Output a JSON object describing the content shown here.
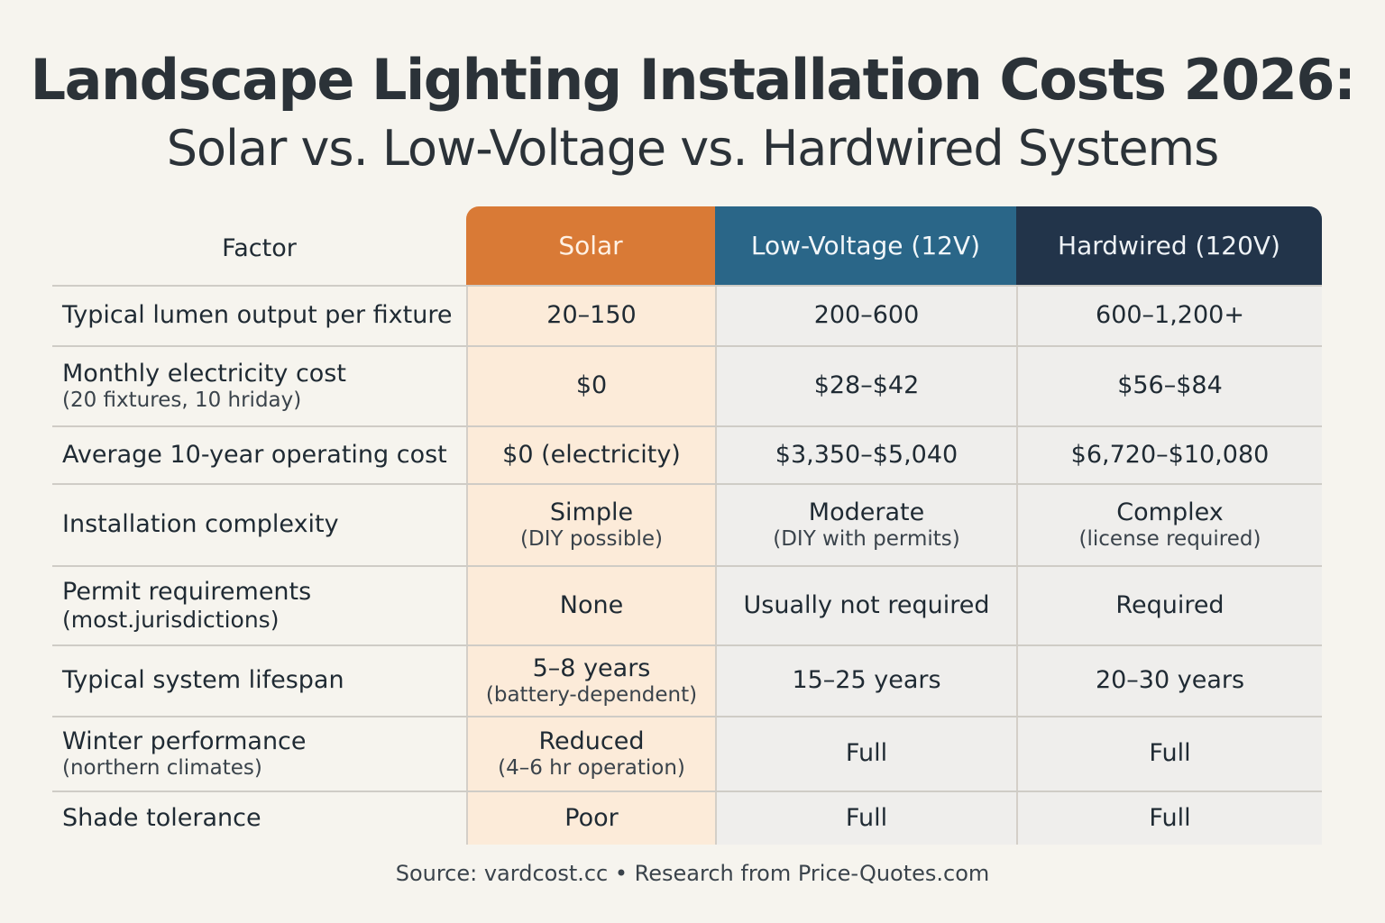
{
  "title": "Landscape Lighting Installation Costs 2026:",
  "subtitle": "Solar vs. Low-Voltage vs. Hardwired Systems",
  "table": {
    "headers": {
      "factor": "Factor",
      "solar": "Solar",
      "low_voltage": "Low-Voltage (12V)",
      "hardwired": "Hardwired (120V)"
    },
    "rows": [
      {
        "factor": "Typical lumen output per fixture",
        "factor_note": "",
        "solar": "20–150",
        "solar_note": "",
        "low_voltage": "200–600",
        "low_voltage_note": "",
        "hardwired": "600–1,200+",
        "hardwired_note": ""
      },
      {
        "factor": "Monthly electricity cost",
        "factor_note": "(20 fixtures, 10 hriday)",
        "solar": "$0",
        "solar_note": "",
        "low_voltage": "$28–$42",
        "low_voltage_note": "",
        "hardwired": "$56–$84",
        "hardwired_note": ""
      },
      {
        "factor": "Average 10-year operating cost",
        "factor_note": "",
        "solar": "$0 (electricity)",
        "solar_note": "",
        "low_voltage": "$3,350–$5,040",
        "low_voltage_note": "",
        "hardwired": "$6,720–$10,080",
        "hardwired_note": ""
      },
      {
        "factor": "Installation complexity",
        "factor_note": "",
        "solar": "Simple",
        "solar_note": "(DIY possible)",
        "low_voltage": "Moderate",
        "low_voltage_note": "(DIY with permits)",
        "hardwired": "Complex",
        "hardwired_note": "(license required)"
      },
      {
        "factor": "Permit requirements",
        "factor_note": "(most.jurisdictions)",
        "solar": "None",
        "solar_note": "",
        "low_voltage": "Usually not required",
        "low_voltage_note": "",
        "hardwired": "Required",
        "hardwired_note": ""
      },
      {
        "factor": "Typical system lifespan",
        "factor_note": "",
        "solar": "5–8 years",
        "solar_note": "(battery-dependent)",
        "low_voltage": "15–25 years",
        "low_voltage_note": "",
        "hardwired": "20–30 years",
        "hardwired_note": ""
      },
      {
        "factor": "Winter performance",
        "factor_note": "(northern climates)",
        "solar": "Reduced",
        "solar_note": "(4–6 hr operation)",
        "low_voltage": "Full",
        "low_voltage_note": "",
        "hardwired": "Full",
        "hardwired_note": ""
      },
      {
        "factor": "Shade tolerance",
        "factor_note": "",
        "solar": "Poor",
        "solar_note": "",
        "low_voltage": "Full",
        "low_voltage_note": "",
        "hardwired": "Full",
        "hardwired_note": ""
      }
    ]
  },
  "footer": "Source: vardcost.cc • Research from Price-Quotes.com"
}
